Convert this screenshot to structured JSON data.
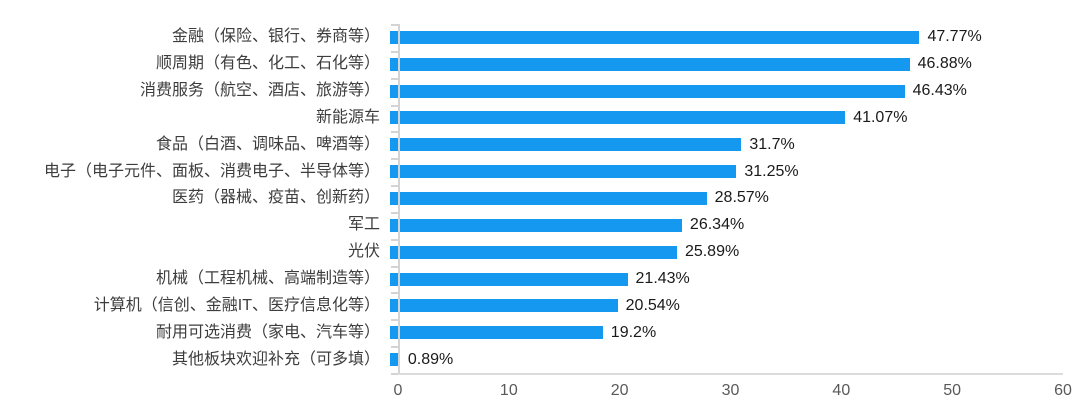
{
  "chart_data": {
    "type": "bar",
    "orientation": "horizontal",
    "title": "",
    "xlabel": "",
    "ylabel": "",
    "grid": "off",
    "legend": "none",
    "xlim": [
      0,
      60
    ],
    "x_ticks": [
      "0",
      "10",
      "20",
      "30",
      "40",
      "50",
      "60"
    ],
    "categories": [
      "金融（保险、银行、券商等）",
      "顺周期（有色、化工、石化等）",
      "消费服务（航空、酒店、旅游等）",
      "新能源车",
      "食品（白酒、调味品、啤酒等）",
      "电子（电子元件、面板、消费电子、半导体等）",
      "医药（器械、疫苗、创新药）",
      "军工",
      "光伏",
      "机械（工程机械、高端制造等）",
      "计算机（信创、金融IT、医疗信息化等）",
      "耐用可选消费（家电、汽车等）",
      "其他板块欢迎补充（可多填）"
    ],
    "values": [
      47.77,
      46.88,
      46.43,
      41.07,
      31.7,
      31.25,
      28.57,
      26.34,
      25.89,
      21.43,
      20.54,
      19.2,
      0.89
    ],
    "value_labels": [
      "47.77%",
      "46.88%",
      "46.43%",
      "41.07%",
      "31.7%",
      "31.25%",
      "28.57%",
      "26.34%",
      "25.89%",
      "21.43%",
      "20.54%",
      "19.2%",
      "0.89%"
    ],
    "bar_color": "#1598f0",
    "axis_color": "#d4d4d4",
    "category_label_color": "#3d3d3d",
    "value_label_color": "#1a1a1a",
    "tick_label_color": "#595959"
  }
}
